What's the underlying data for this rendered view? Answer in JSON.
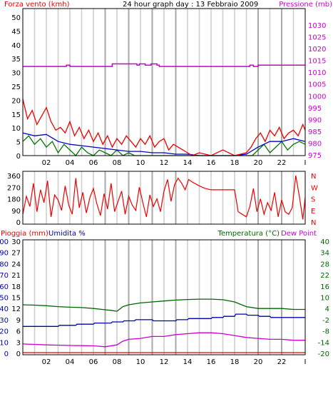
{
  "colors": {
    "background": "#ffffff",
    "frame": "#000000",
    "grid_day": "#cccccc",
    "grid_night": "#a9a9a9",
    "wind_speed": "#ee0000",
    "wind_avg": "#0000cc",
    "wind_low": "#007700",
    "pressure": "#cc00cc",
    "direction": "#ee0000",
    "temperature": "#006600",
    "dew_point": "#cc00cc",
    "humidity": "#0000aa",
    "rain": "#ee0000"
  },
  "chart_data": [
    {
      "type": "line",
      "title": "24 hour graph day : 13 Febbraio 2009",
      "ylabel_left": "Forza vento (kmh)",
      "ylabel_right": "Pressione (mb)",
      "x_ticks": [
        "02",
        "04",
        "06",
        "08",
        "10",
        "12",
        "14",
        "16",
        "18",
        "20",
        "22",
        "I"
      ],
      "x_range": [
        0,
        24
      ],
      "ylim_left": [
        0,
        50
      ],
      "y_ticks_left": [
        "50",
        "45",
        "40",
        "35",
        "30",
        "25",
        "20",
        "15",
        "10",
        "5",
        "0"
      ],
      "ylim_right": [
        975,
        1030
      ],
      "y_ticks_right": [
        "1030",
        "1025",
        "1020",
        "1015",
        "1010",
        "1005",
        "1000",
        "995",
        "990",
        "985",
        "980",
        "975"
      ],
      "night_hours": [
        7,
        9,
        11,
        13,
        20,
        22
      ],
      "series": [
        {
          "axis": "right",
          "x": [
            0.0,
            3.7,
            3.7,
            4.0,
            4.0,
            7.6,
            7.6,
            9.7,
            9.7,
            9.9,
            9.9,
            10.4,
            10.4,
            10.9,
            10.9,
            11.4,
            11.4,
            11.6,
            11.6,
            19.3,
            19.3,
            19.6,
            19.6,
            20.0,
            20.0,
            24.0
          ],
          "y": [
            1009,
            1009,
            1009.5,
            1009.5,
            1009,
            1009,
            1010,
            1010,
            1009.5,
            1009.5,
            1010,
            1010,
            1009.5,
            1009.5,
            1010,
            1010,
            1009.5,
            1009.5,
            1009,
            1009,
            1009.5,
            1009.5,
            1009,
            1009,
            1009.5,
            1009.5
          ]
        },
        {
          "axis": "left",
          "x": [
            0.0,
            0.4,
            0.8,
            1.2,
            1.6,
            2.0,
            2.4,
            2.8,
            3.2,
            3.6,
            4.0,
            4.4,
            4.8,
            5.2,
            5.6,
            6.0,
            6.4,
            6.8,
            7.2,
            7.6,
            8.0,
            8.4,
            8.8,
            9.2,
            9.6,
            10.0,
            10.4,
            10.8,
            11.2,
            11.6,
            12.0,
            12.4,
            12.8,
            13.2,
            13.6,
            14.0,
            14.4,
            15.0,
            16.0,
            17.0,
            18.0,
            19.0,
            19.4,
            19.8,
            20.2,
            20.6,
            21.0,
            21.4,
            21.8,
            22.2,
            22.6,
            23.0,
            23.4,
            23.8,
            24.0
          ],
          "y": [
            20,
            13,
            16,
            11,
            14,
            17,
            12,
            9,
            10,
            8,
            12,
            7,
            10,
            6,
            9,
            5,
            8,
            4,
            7,
            3,
            6,
            4,
            7,
            5,
            3,
            6,
            4,
            7,
            3,
            5,
            6,
            2,
            4,
            3,
            2,
            1,
            0,
            1,
            0,
            2,
            0,
            1,
            3,
            6,
            8,
            5,
            9,
            7,
            10,
            6,
            8,
            9,
            7,
            11,
            9
          ]
        },
        {
          "axis": "left",
          "x": [
            0.0,
            1.0,
            2.0,
            3.0,
            4.0,
            5.0,
            6.0,
            7.0,
            8.0,
            9.0,
            10.0,
            11.0,
            12.0,
            13.0,
            14.0,
            15.0,
            16.0,
            17.0,
            18.0,
            19.0,
            20.0,
            21.0,
            22.0,
            23.0,
            24.0
          ],
          "y": [
            8,
            7,
            7.5,
            5,
            4,
            3.5,
            3,
            2.5,
            2,
            1.5,
            1.5,
            1,
            1,
            0.5,
            0.5,
            0,
            0,
            0,
            0,
            0.5,
            3,
            5,
            5,
            6,
            5
          ]
        },
        {
          "axis": "left",
          "x": [
            0.0,
            0.5,
            1.0,
            1.5,
            2.0,
            2.5,
            3.0,
            3.5,
            4.0,
            4.5,
            5.0,
            5.5,
            6.0,
            6.5,
            7.0,
            7.5,
            8.0,
            8.5,
            9.0,
            9.5,
            10.0,
            11.0,
            12.0,
            13.0,
            14.0,
            16.0,
            18.0,
            19.5,
            20.0,
            20.5,
            21.0,
            21.5,
            22.0,
            22.5,
            23.0,
            23.5,
            24.0
          ],
          "y": [
            5,
            7,
            4,
            6,
            3,
            5,
            1,
            4,
            2,
            0,
            3,
            1,
            0,
            2,
            1,
            0,
            2,
            0,
            1,
            0,
            0,
            0,
            0,
            0,
            0,
            0,
            0,
            0,
            2,
            4,
            1,
            3,
            5,
            2,
            4,
            5,
            4
          ]
        }
      ]
    },
    {
      "type": "line",
      "ylim": [
        0,
        360
      ],
      "y_ticks": [
        "360",
        "270",
        "180",
        "90",
        "0"
      ],
      "direction_labels": [
        "N",
        "W",
        "S",
        "E",
        "N"
      ],
      "x_range": [
        0,
        24
      ],
      "series": [
        {
          "x": [
            0.0,
            0.3,
            0.6,
            0.9,
            1.2,
            1.5,
            1.8,
            2.1,
            2.4,
            2.7,
            3.0,
            3.3,
            3.6,
            3.9,
            4.2,
            4.5,
            4.8,
            5.1,
            5.4,
            5.7,
            6.0,
            6.3,
            6.6,
            6.9,
            7.2,
            7.5,
            7.8,
            8.1,
            8.4,
            8.7,
            9.0,
            9.3,
            9.6,
            9.9,
            10.2,
            10.5,
            10.8,
            11.1,
            11.4,
            11.7,
            12.0,
            12.3,
            12.6,
            12.9,
            13.2,
            13.5,
            13.8,
            14.1,
            14.4,
            15.0,
            15.5,
            16.0,
            17.0,
            18.0,
            18.3,
            19.0,
            19.3,
            19.6,
            19.9,
            20.2,
            20.5,
            20.8,
            21.1,
            21.4,
            21.7,
            22.0,
            22.3,
            22.6,
            22.9,
            23.2,
            23.5,
            23.8,
            24.0
          ],
          "y": [
            60,
            200,
            120,
            300,
            80,
            250,
            150,
            320,
            40,
            210,
            170,
            90,
            280,
            130,
            60,
            340,
            110,
            230,
            70,
            190,
            260,
            140,
            50,
            220,
            100,
            300,
            80,
            160,
            240,
            60,
            200,
            130,
            90,
            270,
            150,
            40,
            210,
            120,
            180,
            80,
            240,
            330,
            160,
            290,
            340,
            300,
            250,
            330,
            310,
            280,
            260,
            250,
            250,
            250,
            80,
            40,
            120,
            260,
            80,
            180,
            60,
            150,
            90,
            230,
            40,
            170,
            80,
            60,
            110,
            360,
            200,
            20,
            190
          ]
        }
      ]
    },
    {
      "type": "line",
      "ylabel_left": "Pioggia (mm)",
      "ylabel_left2": "Umidita %",
      "ylabel_right": "Temperatura (°C)",
      "ylabel_right2": "Dew Point",
      "x_ticks": [
        "02",
        "04",
        "06",
        "08",
        "10",
        "12",
        "14",
        "16",
        "18",
        "20",
        "22",
        "I"
      ],
      "x_range": [
        0,
        24
      ],
      "rain_ticks": [
        "30",
        "27",
        "24",
        "21",
        "18",
        "15",
        "12",
        "9",
        "6",
        "3",
        "0"
      ],
      "humidity_ticks": [
        "100",
        "90",
        "80",
        "70",
        "60",
        "50",
        "40",
        "30",
        "20",
        "10",
        "0"
      ],
      "ylim_right": [
        -20,
        40
      ],
      "y_ticks_right": [
        "40",
        "34",
        "28",
        "22",
        "16",
        "10",
        "4",
        "-2",
        "-8",
        "-14",
        "-20"
      ],
      "series": [
        {
          "name": "Temperatura (°C)",
          "axis": "right",
          "x": [
            0.0,
            1.0,
            2.0,
            3.0,
            4.0,
            5.0,
            6.0,
            7.0,
            7.5,
            8.0,
            8.5,
            9.0,
            10.0,
            11.0,
            12.0,
            13.0,
            14.0,
            15.0,
            16.0,
            17.0,
            18.0,
            19.0,
            20.0,
            21.0,
            22.0,
            23.0,
            24.0
          ],
          "y": [
            6.0,
            5.8,
            5.5,
            5.0,
            4.7,
            4.5,
            4.0,
            3.3,
            3.0,
            2.5,
            5.0,
            6.0,
            7.0,
            7.5,
            8.0,
            8.5,
            8.8,
            9.0,
            9.0,
            8.7,
            7.5,
            5.0,
            4.0,
            4.0,
            4.0,
            3.5,
            3.5
          ]
        },
        {
          "name": "Dew Point",
          "axis": "right",
          "x": [
            0.0,
            2.0,
            4.0,
            6.0,
            7.0,
            8.0,
            8.5,
            9.0,
            10.0,
            11.0,
            12.0,
            13.0,
            14.0,
            15.0,
            16.0,
            17.0,
            18.0,
            19.0,
            20.0,
            21.0,
            22.0,
            23.0,
            24.0
          ],
          "y": [
            -15.0,
            -15.5,
            -15.8,
            -16.0,
            -16.5,
            -15.5,
            -13.5,
            -12.5,
            -12.0,
            -11.0,
            -11.0,
            -10.0,
            -9.5,
            -9.0,
            -9.0,
            -9.5,
            -10.5,
            -11.5,
            -12.0,
            -12.5,
            -12.5,
            -13.0,
            -13.0
          ]
        },
        {
          "name": "Umidita %",
          "axis": "humidity",
          "x": [
            0.0,
            3.0,
            3.1,
            4.5,
            4.6,
            6.0,
            6.1,
            7.5,
            7.6,
            8.5,
            8.6,
            9.5,
            9.6,
            11.0,
            11.1,
            13.0,
            13.1,
            14.0,
            14.1,
            16.0,
            16.1,
            17.0,
            17.1,
            18.0,
            18.1,
            19.0,
            19.1,
            20.0,
            20.1,
            21.0,
            21.1,
            24.0
          ],
          "y": [
            24,
            24,
            25,
            25,
            26,
            26,
            27,
            27,
            28,
            28,
            29,
            29,
            30,
            30,
            29,
            29,
            30,
            30,
            31,
            31,
            32,
            32,
            33,
            33,
            35,
            35,
            34,
            34,
            33,
            33,
            32,
            32
          ]
        },
        {
          "name": "Pioggia (mm)",
          "axis": "rain",
          "x": [
            0.0,
            24.0
          ],
          "y": [
            0.0,
            0.0
          ]
        }
      ]
    }
  ]
}
